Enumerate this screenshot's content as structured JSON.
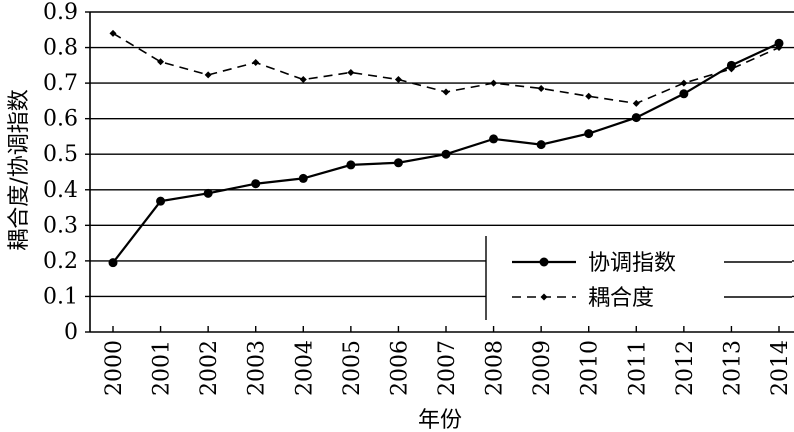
{
  "chart_data": {
    "type": "line",
    "xlabel": "年份",
    "ylabel": "耦合度/协调指数",
    "categories": [
      "2000",
      "2001",
      "2002",
      "2003",
      "2004",
      "2005",
      "2006",
      "2007",
      "2008",
      "2009",
      "2010",
      "2011",
      "2012",
      "2013",
      "2014"
    ],
    "ylim": [
      0,
      0.9
    ],
    "yticks": [
      "0",
      "0.1",
      "0.2",
      "0.3",
      "0.4",
      "0.5",
      "0.6",
      "0.7",
      "0.8",
      "0.9"
    ],
    "grid": true,
    "legend_position": "bottom-right",
    "series": [
      {
        "name": "协调指数",
        "style": "solid",
        "marker": "circle",
        "color": "#000000",
        "values": [
          0.195,
          0.368,
          0.39,
          0.417,
          0.432,
          0.47,
          0.476,
          0.5,
          0.543,
          0.527,
          0.558,
          0.603,
          0.67,
          0.75,
          0.812
        ]
      },
      {
        "name": "耦合度",
        "style": "dashed",
        "marker": "diamond",
        "color": "#000000",
        "values": [
          0.84,
          0.76,
          0.723,
          0.758,
          0.71,
          0.73,
          0.71,
          0.675,
          0.7,
          0.685,
          0.663,
          0.643,
          0.7,
          0.74,
          0.8
        ]
      }
    ]
  }
}
